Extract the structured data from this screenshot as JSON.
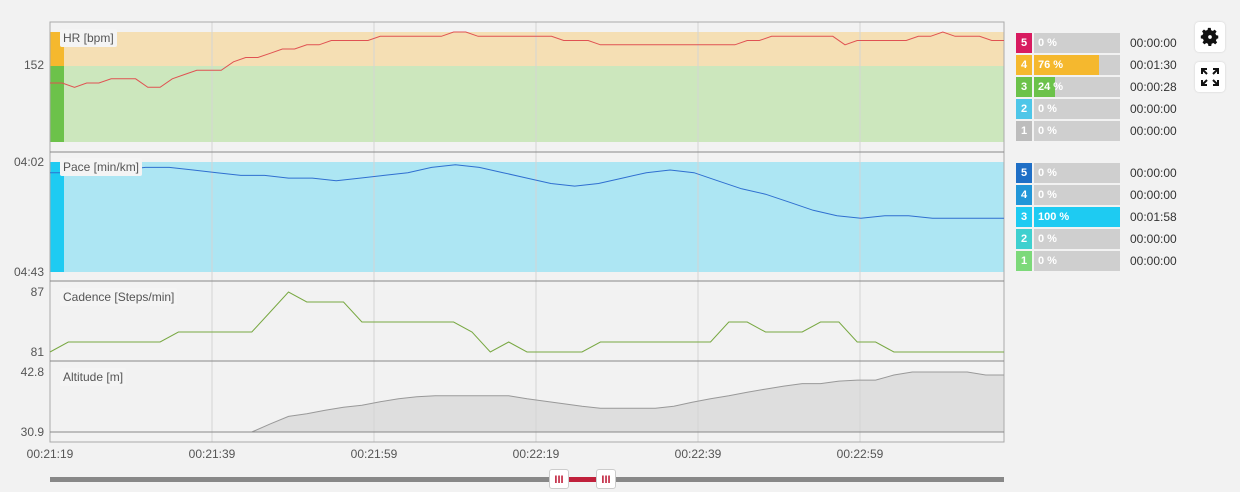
{
  "charts": {
    "hr": {
      "title": "HR [bpm]",
      "y_ticks": [
        "152"
      ],
      "zone_colors": {
        "z4": "#f5dfb4",
        "z3": "#cce7bd"
      },
      "line_color": "#e05252"
    },
    "pace": {
      "title": "Pace [min/km]",
      "y_ticks": [
        "04:02",
        "04:43"
      ],
      "zone_color": "#ade6f3",
      "line_color": "#2f6fd0"
    },
    "cadence": {
      "title": "Cadence [Steps/min]",
      "y_ticks": [
        "87",
        "81"
      ],
      "line_color": "#78a842"
    },
    "altitude": {
      "title": "Altitude [m]",
      "y_ticks": [
        "42.8",
        "30.9"
      ],
      "line_color": "#999999",
      "fill_color": "#dedede"
    }
  },
  "x_ticks": [
    "00:21:19",
    "00:21:39",
    "00:21:59",
    "00:22:19",
    "00:22:39",
    "00:22:59"
  ],
  "hr_zones": [
    {
      "num": "5",
      "pct": "0 %",
      "fraction": 0,
      "time": "00:00:00",
      "color": "#d81b60"
    },
    {
      "num": "4",
      "pct": "76 %",
      "fraction": 0.76,
      "time": "00:01:30",
      "color": "#f5b82e"
    },
    {
      "num": "3",
      "pct": "24 %",
      "fraction": 0.24,
      "time": "00:00:28",
      "color": "#6cc24a"
    },
    {
      "num": "2",
      "pct": "0 %",
      "fraction": 0,
      "time": "00:00:00",
      "color": "#4ec6e8"
    },
    {
      "num": "1",
      "pct": "0 %",
      "fraction": 0,
      "time": "00:00:00",
      "color": "#bdbdbd"
    }
  ],
  "pace_zones": [
    {
      "num": "5",
      "pct": "0 %",
      "fraction": 0,
      "time": "00:00:00",
      "color": "#1f6fc6"
    },
    {
      "num": "4",
      "pct": "0 %",
      "fraction": 0,
      "time": "00:00:00",
      "color": "#2196d8"
    },
    {
      "num": "3",
      "pct": "100 %",
      "fraction": 1,
      "time": "00:01:58",
      "color": "#1ecbf2"
    },
    {
      "num": "2",
      "pct": "0 %",
      "fraction": 0,
      "time": "00:00:00",
      "color": "#3fd0cf"
    },
    {
      "num": "1",
      "pct": "0 %",
      "fraction": 0,
      "time": "00:00:00",
      "color": "#7dd97a"
    }
  ],
  "toolbar": {
    "settings_icon": "gear-icon",
    "fullscreen_icon": "expand-icon"
  },
  "scrollbar": {
    "left_handle": "III",
    "right_handle": "III",
    "range_color": "#c0203b"
  },
  "chart_data": [
    {
      "type": "line",
      "title": "HR [bpm]",
      "series": [
        {
          "values": [
            148,
            148,
            147,
            148,
            148,
            149,
            149,
            149,
            147,
            147,
            149,
            150,
            151,
            151,
            151,
            153,
            154,
            154,
            155,
            156,
            156,
            157,
            157,
            158,
            158,
            158,
            158,
            159,
            159,
            159,
            159,
            159,
            159,
            160,
            160,
            159,
            159,
            159,
            159,
            159,
            159,
            159,
            158,
            158,
            158,
            157,
            157,
            157,
            157,
            157,
            157,
            157,
            157,
            157,
            157,
            157,
            157,
            158,
            158,
            159,
            159,
            159,
            159,
            159,
            159,
            157,
            158,
            158,
            158,
            158,
            158,
            159,
            159,
            160,
            159,
            159,
            159,
            158,
            158
          ]
        }
      ]
    },
    {
      "type": "line",
      "title": "Pace [min/km]",
      "series": [
        {
          "values": [
            "04:06",
            "04:06",
            "04:05",
            "04:05",
            "04:04",
            "04:04",
            "04:05",
            "04:06",
            "04:07",
            "04:07",
            "04:08",
            "04:08",
            "04:09",
            "04:08",
            "04:07",
            "04:06",
            "04:04",
            "04:03",
            "04:04",
            "04:06",
            "04:08",
            "04:10",
            "04:11",
            "04:10",
            "04:08",
            "04:06",
            "04:05",
            "04:06",
            "04:09",
            "04:12",
            "04:14",
            "04:17",
            "04:20",
            "04:22",
            "04:23",
            "04:22",
            "04:22",
            "04:23",
            "04:23",
            "04:23",
            "04:23"
          ]
        }
      ]
    },
    {
      "type": "line",
      "title": "Cadence [Steps/min]",
      "series": [
        {
          "values": [
            81,
            82,
            82,
            82,
            82,
            82,
            82,
            83,
            83,
            83,
            83,
            83,
            85,
            87,
            86,
            86,
            86,
            84,
            84,
            84,
            84,
            84,
            84,
            83,
            81,
            82,
            81,
            81,
            81,
            81,
            82,
            82,
            82,
            82,
            82,
            82,
            82,
            84,
            84,
            83,
            83,
            83,
            84,
            84,
            82,
            82,
            81,
            81,
            81,
            81,
            81,
            81,
            81
          ]
        }
      ]
    },
    {
      "type": "area",
      "title": "Altitude [m]",
      "series": [
        {
          "values": [
            30.9,
            30.9,
            30.9,
            30.9,
            30.9,
            30.9,
            30.9,
            30.9,
            30.9,
            30.9,
            30.9,
            30.9,
            32.5,
            34,
            34.5,
            35.2,
            35.8,
            36.2,
            36.9,
            37.5,
            37.9,
            38.1,
            38.1,
            38.1,
            38.1,
            38.1,
            37.5,
            37,
            36.5,
            36,
            35.6,
            35.6,
            35.6,
            35.6,
            36,
            36.8,
            37.5,
            38.1,
            38.8,
            39.4,
            40,
            40.5,
            40.5,
            41,
            41.2,
            41.2,
            42.2,
            42.8,
            42.8,
            42.8,
            42.8,
            42.2,
            42.2
          ]
        }
      ]
    }
  ]
}
